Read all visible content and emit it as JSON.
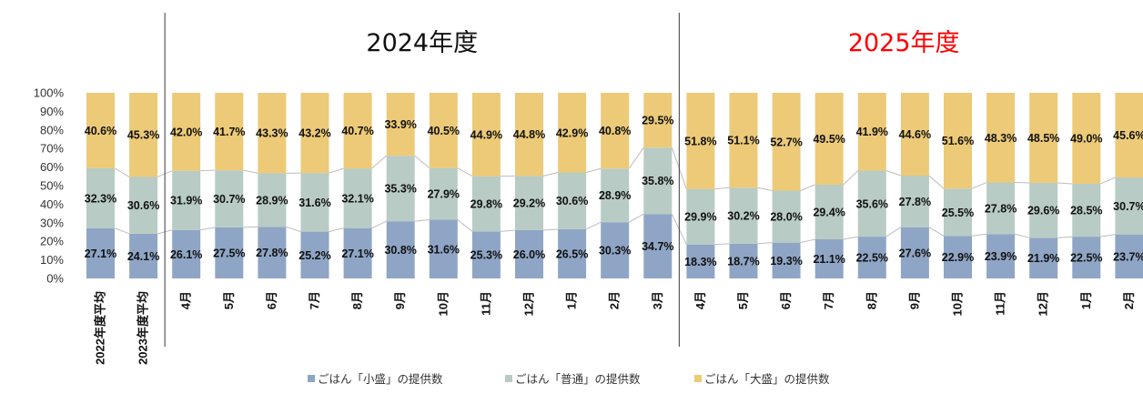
{
  "period_titles": [
    {
      "text": "2024年度",
      "color": "#111111"
    },
    {
      "text": "2025年度",
      "color": "#ff0000"
    }
  ],
  "chart_data": {
    "type": "bar",
    "stacked": true,
    "percent": true,
    "categories": [
      "2022年度平均",
      "2023年度平均",
      "4月",
      "5月",
      "6月",
      "7月",
      "8月",
      "9月",
      "10月",
      "11月",
      "12月",
      "1月",
      "2月",
      "3月",
      "4月",
      "5月",
      "6月",
      "7月",
      "8月",
      "9月",
      "10月",
      "11月",
      "12月",
      "1月",
      "2月"
    ],
    "series": [
      {
        "name": "ごはん「小盛」の提供数",
        "color": "#8fa5c5",
        "labels": [
          "27.1%",
          "24.1%",
          "26.1%",
          "27.5%",
          "27.8%",
          "25.2%",
          "27.1%",
          "30.8%",
          "31.6%",
          "25.3%",
          "26.0%",
          "26.5%",
          "30.3%",
          "34.7%",
          "18.3%",
          "18.7%",
          "19.3%",
          "21.1%",
          "22.5%",
          "27.6%",
          "22.9%",
          "23.9%",
          "21.9%",
          "22.5%",
          "23.7%"
        ],
        "values": [
          27.1,
          24.1,
          26.1,
          27.5,
          27.8,
          25.2,
          27.1,
          30.8,
          31.6,
          25.3,
          26.0,
          26.5,
          30.3,
          34.7,
          18.3,
          18.7,
          19.3,
          21.1,
          22.5,
          27.6,
          22.9,
          23.9,
          21.9,
          22.5,
          23.7
        ]
      },
      {
        "name": "ごはん「普通」の提供数",
        "color": "#b8cbc4",
        "labels": [
          "32.3%",
          "30.6%",
          "31.9%",
          "30.7%",
          "28.9%",
          "31.6%",
          "32.1%",
          "35.3%",
          "27.9%",
          "29.8%",
          "29.2%",
          "30.6%",
          "28.9%",
          "35.8%",
          "29.9%",
          "30.2%",
          "28.0%",
          "29.4%",
          "35.6%",
          "27.8%",
          "25.5%",
          "27.8%",
          "29.6%",
          "28.5%",
          "30.7%"
        ],
        "values": [
          32.3,
          30.6,
          31.9,
          30.7,
          28.9,
          31.6,
          32.1,
          35.3,
          27.9,
          29.8,
          29.2,
          30.6,
          28.9,
          35.8,
          29.9,
          30.2,
          28.0,
          29.4,
          35.6,
          27.8,
          25.5,
          27.8,
          29.6,
          28.5,
          30.7
        ]
      },
      {
        "name": "ごはん「大盛」の提供数",
        "color": "#ecca78",
        "labels": [
          "40.6%",
          "45.3%",
          "42.0%",
          "41.7%",
          "43.3%",
          "43.2%",
          "40.7%",
          "33.9%",
          "40.5%",
          "44.9%",
          "44.8%",
          "42.9%",
          "40.8%",
          "29.5%",
          "51.8%",
          "51.1%",
          "52.7%",
          "49.5%",
          "41.9%",
          "44.6%",
          "51.6%",
          "48.3%",
          "48.5%",
          "49.0%",
          "45.6%"
        ],
        "values": [
          40.6,
          45.3,
          42.0,
          41.7,
          43.3,
          43.2,
          40.7,
          33.9,
          40.5,
          44.9,
          44.8,
          42.9,
          40.8,
          29.5,
          51.8,
          51.1,
          52.7,
          49.5,
          41.9,
          44.6,
          51.6,
          48.3,
          48.5,
          49.0,
          45.6
        ]
      }
    ],
    "y_ticks": [
      "0%",
      "10%",
      "20%",
      "30%",
      "40%",
      "50%",
      "60%",
      "70%",
      "80%",
      "90%",
      "100%"
    ],
    "ylim": [
      0,
      100
    ],
    "grid": false,
    "legend_position": "bottom",
    "group_separators_after_index": [
      1,
      13
    ]
  }
}
